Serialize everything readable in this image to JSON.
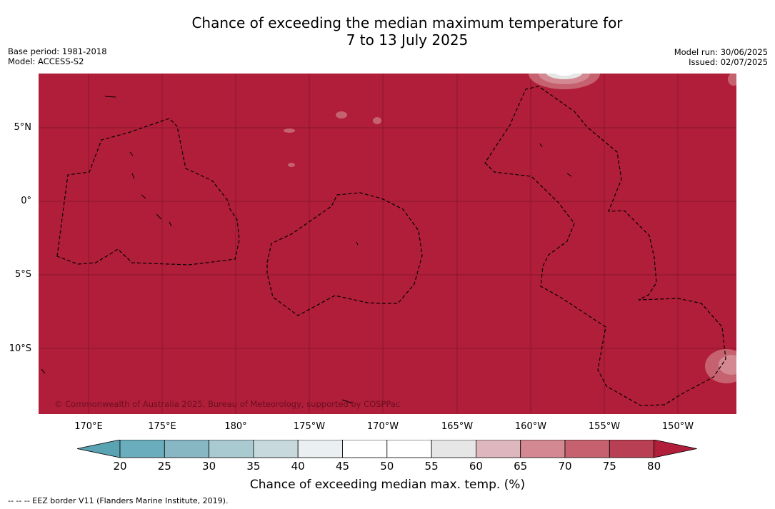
{
  "header": {
    "title_line1": "Chance of exceeding the median maximum temperature for",
    "title_line2": "7 to 13 July 2025",
    "base_period": "Base period: 1981-2018",
    "model": "Model: ACCESS-S2",
    "model_run": "Model run: 30/06/2025",
    "issued": "Issued: 02/07/2025"
  },
  "map": {
    "lat_labels": [
      "5°N",
      "0°",
      "5°S",
      "10°S"
    ],
    "lon_labels": [
      "170°E",
      "175°E",
      "180°",
      "175°W",
      "170°W",
      "165°W",
      "160°W",
      "155°W",
      "150°W"
    ],
    "copyright": "© Commonwealth of Australia 2025, Bureau of Meteorology, supported by COSPPac",
    "dominant_fill_color": "#b11e3a",
    "border_line_style": "dashed"
  },
  "colorbar": {
    "ticks": [
      "20",
      "25",
      "30",
      "35",
      "40",
      "45",
      "50",
      "55",
      "60",
      "65",
      "70",
      "75",
      "80"
    ],
    "colors": [
      "#5aa3b3",
      "#6aadbd",
      "#87b7c3",
      "#a9cad0",
      "#c7d9dd",
      "#eaeff1",
      "#ffffff",
      "#ffffff",
      "#e6e6e6",
      "#deb6bd",
      "#d48891",
      "#c66270",
      "#b93f54",
      "#b11e3a"
    ],
    "label": "Chance of exceeding median max. temp. (%)"
  },
  "footnote": "-- -- -- EEZ border V11 (Flanders Marine Institute, 2019)."
}
